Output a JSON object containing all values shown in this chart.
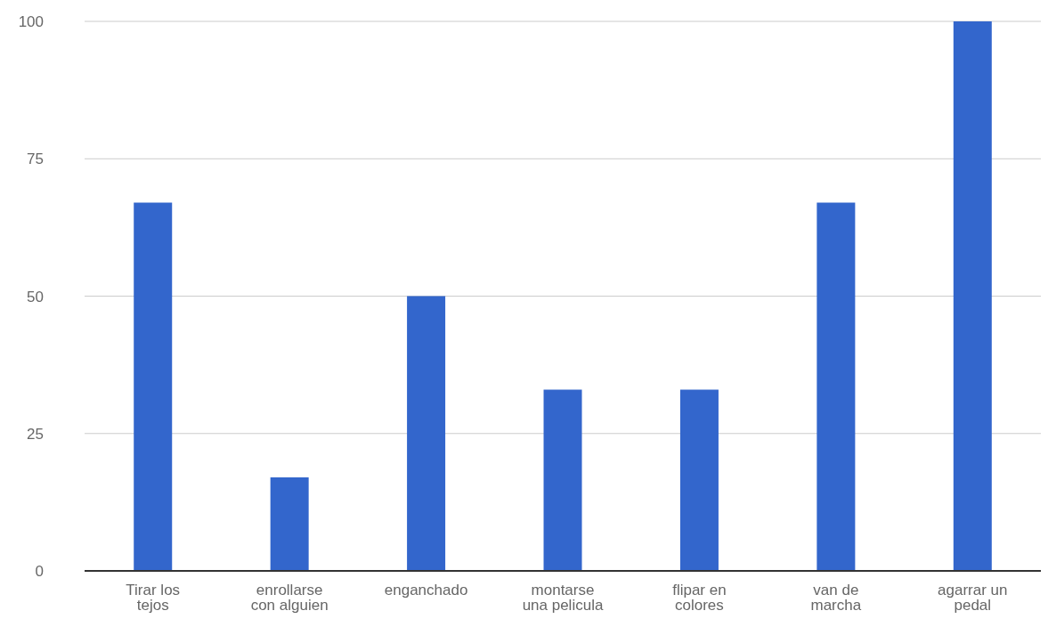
{
  "chart_data": {
    "type": "bar",
    "categories": [
      "Tirar los tejos",
      "enrollarse con alguien",
      "enganchado",
      "montarse una pelicula",
      "flipar en colores",
      "van de marcha",
      "agarrar un pedal"
    ],
    "values": [
      67,
      17,
      50,
      33,
      33,
      67,
      100
    ],
    "color": "#3366cc",
    "ylim": [
      0,
      100
    ],
    "yticks": [
      0,
      25,
      50,
      75,
      100
    ],
    "grid": "y",
    "legend": false
  }
}
